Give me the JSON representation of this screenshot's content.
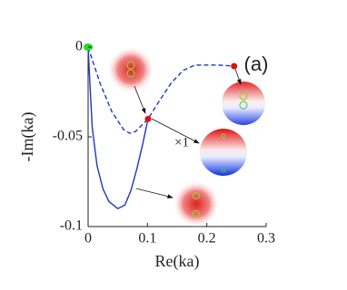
{
  "chart_data": {
    "type": "line",
    "xlabel": "Re(ka)",
    "ylabel": "-Im(ka)",
    "xlim": [
      0,
      0.3
    ],
    "ylim": [
      -0.1,
      0
    ],
    "xticks": [
      0,
      0.1,
      0.2,
      0.3
    ],
    "yticks": [
      -0.1,
      -0.05,
      0
    ],
    "series": [
      {
        "style": "solid",
        "color": "#1f35c8",
        "x": [
          0,
          0.003,
          0.007,
          0.015,
          0.025,
          0.035,
          0.05,
          0.062,
          0.072,
          0.082,
          0.092,
          0.101
        ],
        "values": [
          0,
          -0.02,
          -0.045,
          -0.066,
          -0.079,
          -0.086,
          -0.09,
          -0.088,
          -0.08,
          -0.068,
          -0.054,
          -0.04
        ]
      },
      {
        "style": "dashed",
        "color": "#1f35c8",
        "x": [
          0,
          0.02,
          0.04,
          0.06,
          0.07,
          0.08,
          0.101,
          0.12,
          0.14,
          0.16,
          0.18,
          0.2,
          0.22,
          0.246
        ],
        "values": [
          0,
          -0.02,
          -0.036,
          -0.046,
          -0.048,
          -0.047,
          -0.04,
          -0.03,
          -0.02,
          -0.013,
          -0.01,
          -0.01,
          -0.01,
          -0.0106
        ]
      }
    ],
    "points": {
      "x": [
        0,
        0.101,
        0.246
      ],
      "values": [
        0,
        -0.04,
        -0.0106
      ],
      "colors": [
        "#22dd22",
        "#e01010",
        "#e01010"
      ]
    },
    "annotations": [
      "(a)",
      "×1"
    ]
  }
}
